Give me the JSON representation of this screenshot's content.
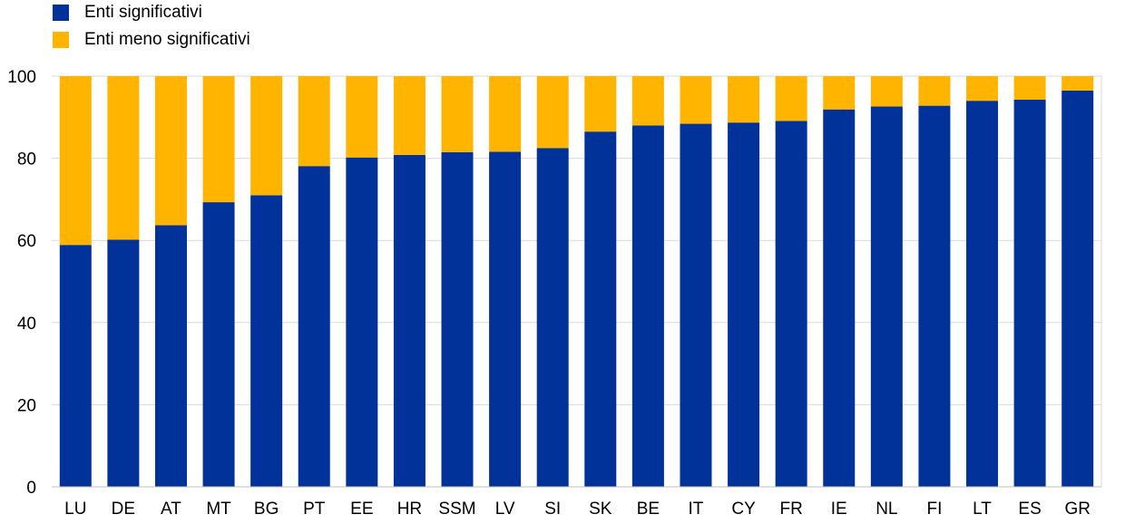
{
  "legend": {
    "items": [
      {
        "label": "Enti significativi",
        "color": "#003299"
      },
      {
        "label": "Enti meno significativi",
        "color": "#FFB400"
      }
    ]
  },
  "chart_data": {
    "type": "bar",
    "stacked": true,
    "categories": [
      "LU",
      "DE",
      "AT",
      "MT",
      "BG",
      "PT",
      "EE",
      "HR",
      "SSM",
      "LV",
      "SI",
      "SK",
      "BE",
      "IT",
      "CY",
      "FR",
      "IE",
      "NL",
      "FI",
      "LT",
      "ES",
      "GR"
    ],
    "series": [
      {
        "name": "Enti significativi",
        "color": "#003299",
        "values": [
          58.9,
          60.2,
          63.7,
          69.3,
          71.0,
          78.1,
          80.2,
          80.8,
          81.5,
          81.6,
          82.5,
          86.5,
          88.0,
          88.4,
          88.7,
          89.1,
          91.9,
          92.6,
          92.8,
          94.0,
          94.3,
          96.5
        ]
      },
      {
        "name": "Enti meno significativi",
        "color": "#FFB400",
        "values": [
          41.1,
          39.8,
          36.3,
          30.7,
          29.0,
          21.9,
          19.8,
          19.2,
          18.5,
          18.4,
          17.5,
          13.5,
          12.0,
          11.6,
          11.3,
          10.9,
          8.1,
          7.4,
          7.2,
          6.0,
          5.7,
          3.5
        ]
      }
    ],
    "yticks": [
      0,
      20,
      40,
      60,
      80,
      100
    ],
    "ylim": [
      0,
      100
    ],
    "grid": true,
    "legend_position": "top-left"
  }
}
